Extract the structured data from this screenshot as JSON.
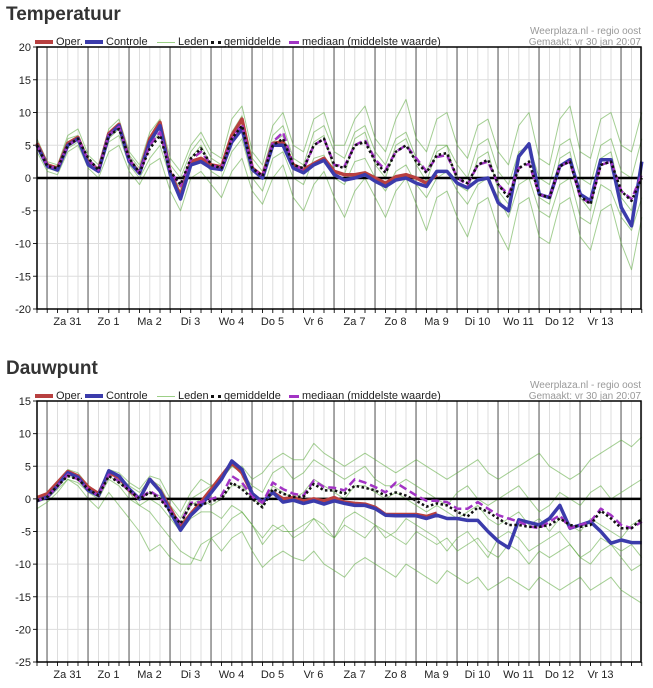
{
  "source": "Weerplaza.nl - regio oost",
  "made": "Gemaakt: vr 30 jan 20:07",
  "legend": {
    "oper": "Oper.",
    "controle": "Controle",
    "leden": "Leden",
    "gemiddelde": "gemiddelde",
    "mediaan": "mediaan (middelste waarde)"
  },
  "colors": {
    "oper": "#b84040",
    "controle": "#3b3bab",
    "leden": "#5aa83a",
    "gemiddelde": "#111111",
    "mediaan": "#a234c4",
    "grid": "#dddddd",
    "day": "#555555"
  },
  "chart_data": [
    {
      "type": "line",
      "title": "Temperatuur",
      "x_interval": "6h",
      "xticks": [
        "Za 31",
        "Zo 1",
        "Ma 2",
        "Di 3",
        "Wo 4",
        "Do 5",
        "Vr 6",
        "Za 7",
        "Zo 8",
        "Ma 9",
        "Di 10",
        "Wo 11",
        "Do 12",
        "Vr 13"
      ],
      "ylim": [
        -20,
        20
      ],
      "yticks": [
        20,
        15,
        10,
        5,
        0,
        -5,
        -10,
        -15,
        -20
      ],
      "grid": true,
      "legend_position": "top",
      "members": [
        [
          6,
          2.5,
          2,
          6.5,
          7.5,
          3.5,
          2,
          7.5,
          9,
          4,
          2,
          7,
          9,
          3,
          1,
          5,
          7,
          4,
          3,
          9,
          11,
          4,
          2,
          8,
          10,
          5,
          4,
          9,
          10,
          5,
          5,
          9,
          11,
          6,
          4,
          9,
          12,
          6,
          4,
          9,
          10,
          5,
          3,
          8,
          9,
          4,
          2,
          8,
          10,
          3,
          2,
          9,
          11,
          4,
          3,
          9,
          10,
          5,
          4,
          10
        ],
        [
          4,
          1,
          0.5,
          4,
          5,
          1.5,
          0,
          4,
          5,
          1,
          -1,
          2,
          3,
          -2,
          -5,
          0,
          1,
          -1,
          -3,
          1,
          3,
          -2,
          -4,
          0,
          2,
          -3,
          -5,
          -1,
          1,
          -3,
          -6,
          -2,
          0,
          -3,
          -6,
          -2,
          0,
          -4,
          -8,
          -3,
          -2,
          -6,
          -9,
          -4,
          -3,
          -8,
          -11,
          -4,
          -3,
          -9,
          -10,
          -4,
          -3,
          -9,
          -11,
          -5,
          -4,
          -10,
          -14,
          -6
        ],
        [
          5.5,
          2,
          1.8,
          6,
          6.5,
          3,
          1.5,
          7,
          8,
          3.5,
          1.5,
          5.5,
          8,
          2,
          0,
          4,
          6,
          3,
          2,
          7,
          9.5,
          3,
          1,
          6.5,
          8,
          3,
          2,
          7,
          8,
          4,
          3,
          7,
          8,
          4,
          2,
          6,
          7,
          3,
          1,
          5,
          5,
          2,
          0,
          5,
          6,
          1,
          -1,
          4,
          5,
          0,
          -1,
          5,
          6,
          0,
          -1,
          5,
          6,
          1,
          0,
          6
        ],
        [
          4.5,
          1.5,
          1,
          4.5,
          5.5,
          2.5,
          0.8,
          5.5,
          6.5,
          2,
          0,
          3,
          5,
          0,
          -2,
          2,
          3,
          1,
          0,
          4,
          6,
          0,
          -2,
          3,
          4,
          0,
          -1,
          3,
          3.5,
          0,
          -1,
          2.5,
          3,
          0,
          -2,
          1,
          2,
          -1,
          -3,
          0,
          1,
          -2,
          -4,
          -1,
          0,
          -3,
          -6,
          -1,
          0,
          -5,
          -6,
          -1,
          0,
          -6,
          -7,
          -1,
          -2,
          -6,
          -8,
          -3
        ],
        [
          5,
          2,
          1.5,
          5,
          6,
          2.5,
          1,
          6,
          7.5,
          2.5,
          0.5,
          5,
          7,
          0.5,
          -1.5,
          3,
          5,
          2,
          1,
          6.5,
          8.5,
          1,
          0,
          5.5,
          6.5,
          1.5,
          1,
          5.5,
          6.5,
          1,
          0.5,
          6,
          7,
          2,
          0,
          5,
          6,
          2,
          -0.5,
          4,
          5,
          -1,
          -2,
          3,
          4,
          -2,
          -4,
          3,
          5,
          -3,
          -4,
          3,
          4,
          -3,
          -5,
          3,
          4,
          -3,
          -5,
          1
        ]
      ],
      "gemiddelde": [
        5,
        1.8,
        1.5,
        5,
        6,
        3,
        1.2,
        6.5,
        7.5,
        3,
        0.8,
        4.5,
        6.5,
        1,
        -1,
        3,
        4.5,
        2,
        1.5,
        6,
        8,
        1.5,
        0.3,
        5,
        6,
        2,
        1.5,
        5,
        6,
        2,
        1.5,
        5,
        5.5,
        2.5,
        0.8,
        4,
        5,
        2.5,
        0.8,
        3.5,
        3.8,
        0,
        -0.8,
        2,
        2.8,
        -1,
        -3,
        1.5,
        2.5,
        -2.5,
        -3,
        1.8,
        2.5,
        -2.8,
        -4,
        2,
        2.5,
        -2,
        -3.5,
        0
      ],
      "mediaan": [
        5,
        1.8,
        1.5,
        5,
        6,
        2.8,
        1.2,
        6.6,
        7.8,
        2.8,
        0.8,
        5,
        7,
        1,
        -1.2,
        2.8,
        4,
        2,
        1.5,
        6,
        8.2,
        1.5,
        0.3,
        5.5,
        7,
        2,
        1.3,
        5,
        6,
        2,
        1.8,
        5,
        5.8,
        2.8,
        1.2,
        4,
        5,
        3,
        1,
        3.2,
        3.5,
        0,
        -1,
        2,
        2.5,
        -1,
        -2.5,
        1.5,
        2.2,
        -2.5,
        -3,
        1.8,
        2.5,
        -3,
        -3.8,
        2,
        2.5,
        -2,
        -3.2,
        0.5
      ],
      "controle": [
        5,
        1.8,
        1.2,
        5,
        6,
        2,
        1,
        6.5,
        8,
        2.5,
        0.7,
        5.5,
        8,
        0.5,
        -3.2,
        2,
        2.5,
        1.5,
        1.3,
        5.5,
        7.5,
        1.3,
        0,
        5,
        5,
        1.5,
        0.8,
        2,
        2.7,
        0.5,
        -0.3,
        0,
        0.5,
        -0.5,
        -1.3,
        -0.3,
        0,
        -0.8,
        -1.3,
        1,
        1,
        -0.8,
        -1.5,
        -0.3,
        0,
        -3.8,
        -5,
        3.3,
        5.2,
        -2.5,
        -3,
        1.8,
        2.8,
        -2.5,
        -3.5,
        2.8,
        2.8,
        -4.5,
        -7.3,
        2.5
      ],
      "oper": [
        5.3,
        2,
        1.5,
        5.3,
        6.2,
        2.3,
        1.2,
        6.8,
        8.2,
        2.7,
        0.8,
        6,
        8.5,
        0.8,
        -2.7,
        2.5,
        3,
        2,
        1.7,
        6.5,
        9,
        1.5,
        0.3,
        5.3,
        5.5,
        2,
        1.3,
        2.2,
        3,
        1,
        0.5,
        0.5,
        0.8,
        0,
        -0.8,
        0.2,
        0.5,
        0,
        -0.8,
        0.5
      ]
    },
    {
      "type": "line",
      "title": "Dauwpunt",
      "x_interval": "6h",
      "xticks": [
        "Za 31",
        "Zo 1",
        "Ma 2",
        "Di 3",
        "Wo 4",
        "Do 5",
        "Vr 6",
        "Za 7",
        "Zo 8",
        "Ma 9",
        "Di 10",
        "Wo 11",
        "Do 12",
        "Vr 13"
      ],
      "ylim": [
        -25,
        15
      ],
      "yticks": [
        15,
        10,
        5,
        0,
        -5,
        -10,
        -15,
        -20,
        -25
      ],
      "grid": true,
      "legend_position": "top",
      "members": [
        [
          0,
          1,
          2.5,
          4.5,
          4,
          2,
          1,
          4.5,
          4,
          2.5,
          1.5,
          3.5,
          3,
          0,
          -2,
          1,
          3,
          2,
          3,
          5,
          5,
          3,
          4,
          6,
          7,
          6,
          6,
          8.5,
          7,
          6,
          5,
          6,
          7,
          6,
          5,
          4,
          5,
          6,
          5,
          4,
          3,
          4,
          5,
          6,
          4,
          3,
          4,
          5,
          6,
          7,
          5,
          4,
          3,
          4,
          6,
          7,
          8,
          9,
          8,
          9.5
        ],
        [
          -1.5,
          -0.5,
          1,
          3,
          2,
          0,
          -1.5,
          1,
          -1,
          -3,
          -5,
          -8,
          -7,
          -9,
          -10,
          -10,
          -7,
          -6,
          -8,
          -6,
          -5,
          -8,
          -10.5,
          -9,
          -8,
          -9,
          -9.5,
          -8,
          -10,
          -11,
          -12,
          -10,
          -9,
          -10,
          -11,
          -12,
          -10,
          -11,
          -12,
          -13,
          -11,
          -12,
          -13,
          -12,
          -14,
          -13,
          -12,
          -13,
          -14,
          -12,
          -13,
          -14,
          -13,
          -12,
          -14,
          -13,
          -12,
          -14,
          -15,
          -16
        ],
        [
          0,
          0.5,
          2,
          4,
          3.5,
          2,
          1,
          4,
          3.5,
          2,
          1,
          3,
          2,
          -1,
          -3,
          0,
          1,
          2,
          3,
          5,
          4,
          2,
          1,
          4,
          5,
          3,
          4,
          6,
          5,
          4,
          3,
          4,
          5,
          3,
          2,
          2,
          3,
          2,
          1,
          0,
          -1,
          1,
          2,
          0,
          -1,
          0,
          1,
          2,
          0,
          -2,
          -1,
          1,
          0,
          -1,
          1,
          2,
          0,
          1,
          2,
          3
        ],
        [
          -0.5,
          0,
          1.5,
          3,
          2.5,
          1,
          0,
          3,
          2,
          0,
          -1,
          0,
          -1,
          -3,
          -5,
          -3,
          -2,
          -2,
          -3,
          -1,
          -2,
          -4,
          -6,
          -4,
          -5,
          -5,
          -4,
          -3,
          -5,
          -6,
          -4,
          -5,
          -6,
          -4,
          -5,
          -6,
          -7,
          -5,
          -6,
          -7,
          -6,
          -8,
          -7,
          -6,
          -8,
          -9,
          -7,
          -8,
          -10,
          -8,
          -9,
          -8,
          -7,
          -9,
          -10,
          -8,
          -7,
          -9,
          -11,
          -10
        ],
        [
          -0.3,
          0.2,
          2,
          3.5,
          3,
          1.5,
          0.5,
          3.5,
          2.5,
          1,
          0,
          1,
          0.5,
          -2,
          -4,
          -1,
          0,
          -1,
          0,
          2,
          2,
          0,
          -1,
          2,
          1,
          0,
          1,
          3,
          2,
          1,
          0,
          2,
          2,
          1,
          0,
          1,
          0,
          -1,
          -2,
          -1,
          -2,
          -3,
          -2,
          -1,
          -3,
          -4,
          -3,
          -2,
          -4,
          -3,
          -5,
          -3,
          -4,
          -5,
          -3,
          -4,
          -5,
          -6,
          -4,
          -3
        ],
        [
          -0.5,
          0.5,
          2,
          4,
          3,
          1.5,
          0.5,
          4,
          3,
          1,
          -1,
          -2,
          -4,
          -6,
          -8,
          -9,
          -9.5,
          -6,
          -5,
          -3,
          -2,
          -4,
          -7,
          -5,
          -4,
          -6,
          -5,
          -3,
          -4,
          -6,
          -3,
          -2,
          -3,
          -4,
          -6,
          -5,
          -3,
          -4,
          -5,
          -6,
          -8,
          -6,
          -5,
          -7,
          -9,
          -6,
          -5,
          -6,
          -8,
          -7,
          -6,
          -5,
          -7,
          -9,
          -8,
          -6,
          -7,
          -8,
          -7,
          -9
        ]
      ],
      "gemiddelde": [
        -0.3,
        0.3,
        2,
        3.5,
        3,
        1.5,
        0.5,
        3.5,
        2.5,
        1.3,
        0,
        1,
        0,
        -2,
        -3.8,
        -0.8,
        -1,
        -0.3,
        0,
        2.5,
        1.5,
        0,
        -1.3,
        1.5,
        0.8,
        0.3,
        0.3,
        2.3,
        1.3,
        1.3,
        0.8,
        2,
        1.7,
        1.3,
        0.5,
        1,
        0.5,
        -0.3,
        -1.2,
        -0.7,
        -1,
        -2,
        -2.7,
        -1.3,
        -2,
        -3,
        -4,
        -4,
        -4.3,
        -4.3,
        -4,
        -3,
        -4,
        -4.3,
        -4,
        -1.8,
        -3,
        -4.5,
        -4.5,
        -3
      ],
      "mediaan": [
        -0.3,
        0.3,
        2,
        3.7,
        3,
        1.5,
        0.5,
        3.7,
        2.7,
        1.3,
        0,
        1.2,
        0.2,
        -1.8,
        -3.7,
        -0.6,
        -0.5,
        0,
        0.5,
        3.5,
        2.5,
        0.3,
        -0.6,
        2.5,
        1.5,
        0.8,
        0.5,
        2.8,
        1.8,
        1.7,
        1.3,
        3,
        2.5,
        1.8,
        1,
        2.5,
        1.5,
        0.5,
        -0.3,
        -0.3,
        -0.5,
        -1.5,
        -1.5,
        -0.5,
        -1.5,
        -2.5,
        -3,
        -3.5,
        -4.2,
        -4.5,
        -3.5,
        -2.5,
        -4.5,
        -4,
        -3.5,
        -1.5,
        -2.5,
        -4,
        -4.5,
        -3.5
      ],
      "controle": [
        -0.3,
        0.3,
        2,
        4,
        3.3,
        1.3,
        0.5,
        4.3,
        3.5,
        1.5,
        0,
        3,
        1.2,
        -2,
        -4.8,
        -2.5,
        -1,
        1,
        3,
        5.8,
        4.5,
        0.8,
        -0.5,
        1,
        -0.5,
        -0.2,
        -0.7,
        -0.3,
        -0.8,
        -0.3,
        -0.7,
        -1,
        -1,
        -1.5,
        -2.5,
        -2.6,
        -2.6,
        -2.6,
        -3,
        -2.5,
        -3,
        -3,
        -3.3,
        -3.3,
        -5,
        -6.5,
        -7.5,
        -3.2,
        -3.6,
        -4,
        -3,
        -1,
        -4.5,
        -4,
        -3.5,
        -5,
        -6.8,
        -6.3,
        -6.7,
        -6.7
      ],
      "oper": [
        0.2,
        0.8,
        2.5,
        4.2,
        3.5,
        1.8,
        0.8,
        4,
        3.3,
        1.3,
        0,
        3,
        1.3,
        -1.5,
        -4.3,
        -2.3,
        -0.5,
        1.5,
        3.5,
        5.5,
        4,
        0.8,
        -0.5,
        1,
        0,
        0.2,
        -0.3,
        0,
        -0.3,
        0.2,
        -0.5,
        -0.7,
        -0.8,
        -1.3,
        -2.4,
        -2.4,
        -2.4,
        -2.4,
        -2.7,
        -2.2
      ]
    }
  ]
}
